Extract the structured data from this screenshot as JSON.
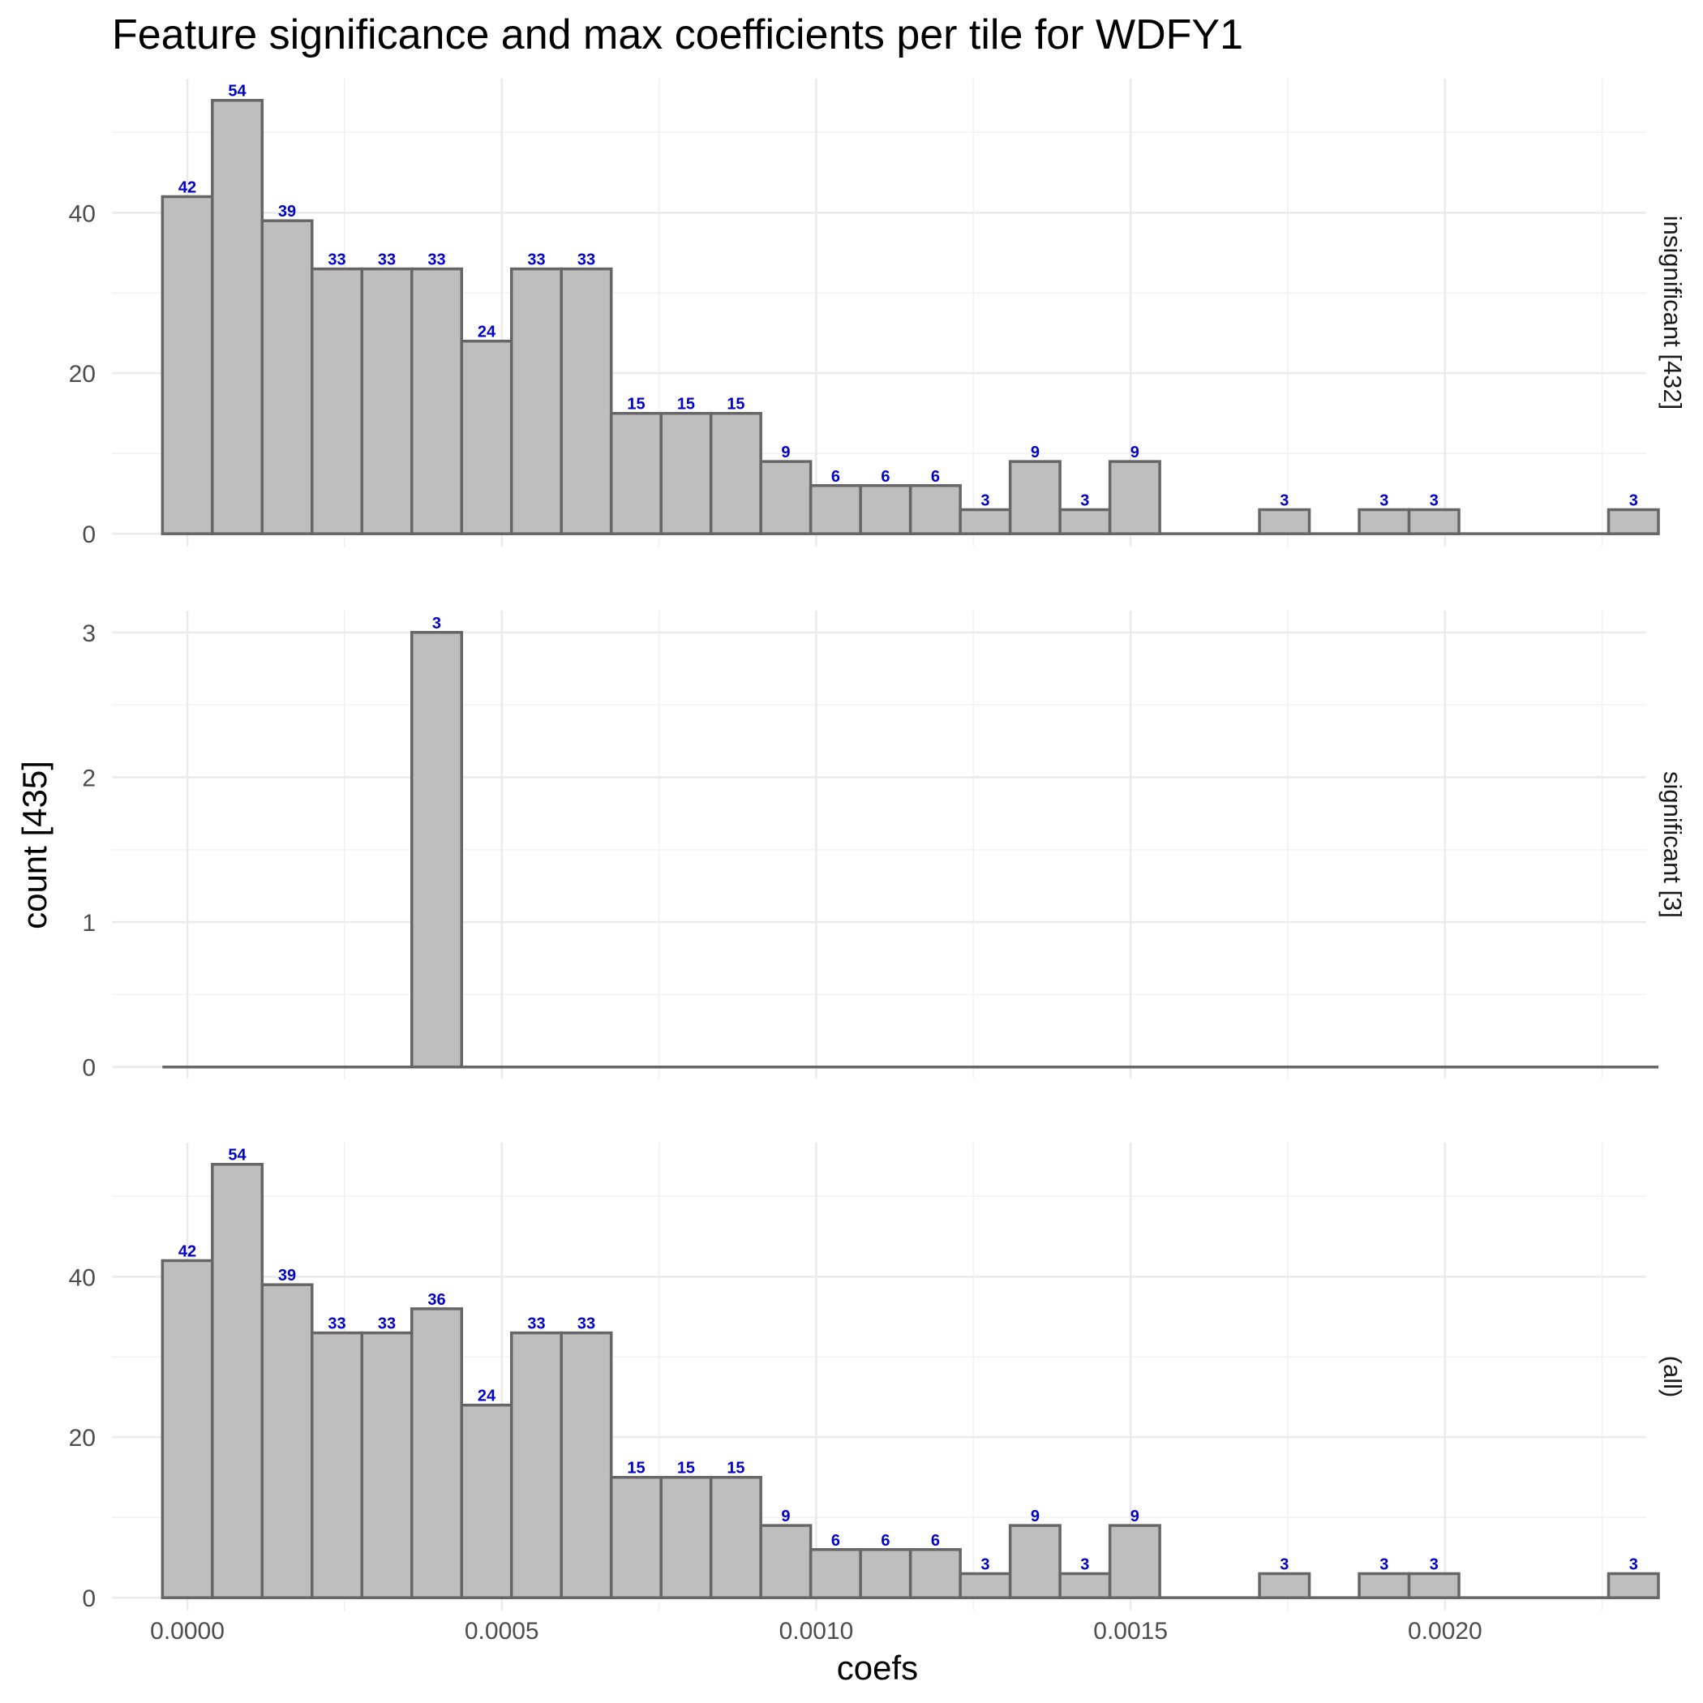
{
  "chart_data": {
    "type": "bar",
    "title": "Feature significance and max coefficients per tile for WDFY1",
    "xlabel": "coefs",
    "ylabel": "count [435]",
    "bin_width": 7.93e-05,
    "bin_centers": [
      0.0,
      7.93e-05,
      0.0001586,
      0.0002379,
      0.0003172,
      0.0003965,
      0.0004758,
      0.0005551,
      0.0006344,
      0.0007137,
      0.000793,
      0.0008723,
      0.0009516,
      0.0010309,
      0.0011102,
      0.0011895,
      0.0012688,
      0.0013481,
      0.0014274,
      0.0015067,
      0.001586,
      0.0016653,
      0.0017446,
      0.0018239,
      0.0019032,
      0.0019825,
      0.0020618,
      0.0021411,
      0.0022204,
      0.0022997
    ],
    "xlim": [
      -0.00012,
      0.00232
    ],
    "x_ticks": [
      0.0,
      0.0005,
      0.001,
      0.0015,
      0.002
    ],
    "x_tick_labels": [
      "0.0000",
      "0.0005",
      "0.0010",
      "0.0015",
      "0.0020"
    ],
    "series": [
      {
        "name": "insignificant [432]",
        "values": [
          42,
          54,
          39,
          33,
          33,
          33,
          24,
          33,
          33,
          15,
          15,
          15,
          9,
          6,
          6,
          6,
          3,
          9,
          3,
          9,
          0,
          0,
          3,
          0,
          3,
          3,
          0,
          0,
          0,
          3
        ],
        "ylim": [
          -1.6,
          56.7
        ],
        "y_ticks": [
          0,
          20,
          40
        ],
        "y_minor_ticks": [
          10,
          30,
          50
        ]
      },
      {
        "name": "significant [3]",
        "values": [
          0,
          0,
          0,
          0,
          0,
          3,
          0,
          0,
          0,
          0,
          0,
          0,
          0,
          0,
          0,
          0,
          0,
          0,
          0,
          0,
          0,
          0,
          0,
          0,
          0,
          0,
          0,
          0,
          0,
          0
        ],
        "ylim": [
          -0.08,
          3.15
        ],
        "y_ticks": [
          0,
          1,
          2,
          3
        ],
        "y_minor_ticks": [
          0.5,
          1.5,
          2.5
        ]
      },
      {
        "name": "(all)",
        "values": [
          42,
          54,
          39,
          33,
          33,
          36,
          24,
          33,
          33,
          15,
          15,
          15,
          9,
          6,
          6,
          6,
          3,
          9,
          3,
          9,
          0,
          0,
          3,
          0,
          3,
          3,
          0,
          0,
          0,
          3
        ],
        "ylim": [
          -1.6,
          56.7
        ],
        "y_ticks": [
          0,
          20,
          40
        ],
        "y_minor_ticks": [
          10,
          30,
          50
        ]
      }
    ],
    "label_color": "#0000cc",
    "bar_fill": "#bebebe",
    "bar_stroke": "#666666"
  }
}
